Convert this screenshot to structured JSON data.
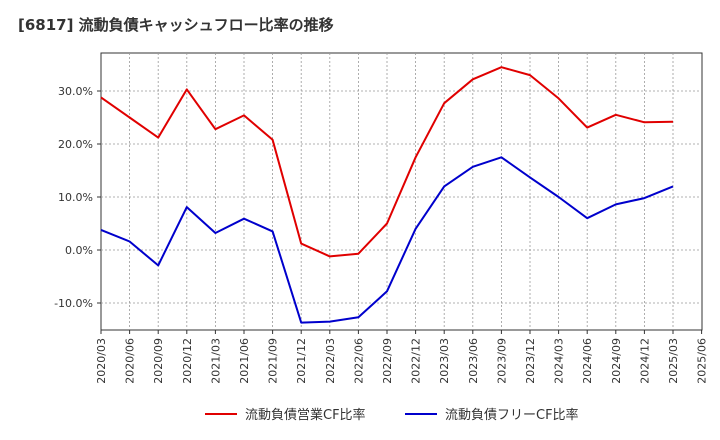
{
  "chart_data": {
    "type": "line",
    "title": "[6817]  流動負債キャッシュフロー比率の推移",
    "x": [
      "2020/03",
      "2020/06",
      "2020/09",
      "2020/12",
      "2021/03",
      "2021/06",
      "2021/09",
      "2021/12",
      "2022/03",
      "2022/06",
      "2022/09",
      "2022/12",
      "2023/03",
      "2023/06",
      "2023/09",
      "2023/12",
      "2024/03",
      "2024/06",
      "2024/09",
      "2024/12",
      "2025/03",
      "2025/06"
    ],
    "series": [
      {
        "name": "流動負債営業CF比率",
        "color": "#e00000",
        "values": [
          28.8,
          25.0,
          21.2,
          30.3,
          22.8,
          25.4,
          20.8,
          1.2,
          -1.2,
          -0.7,
          5.0,
          17.5,
          27.7,
          32.2,
          34.5,
          33.0,
          28.6,
          23.1,
          25.5,
          24.1,
          24.2,
          null
        ]
      },
      {
        "name": "流動負債フリーCF比率",
        "color": "#0000cc",
        "values": [
          3.8,
          1.6,
          -2.9,
          8.1,
          3.2,
          5.9,
          3.5,
          -13.7,
          -13.5,
          -12.7,
          -7.8,
          4.0,
          12.0,
          15.7,
          17.5,
          13.7,
          10.0,
          6.0,
          8.6,
          9.8,
          12.0,
          null
        ]
      }
    ],
    "yticks": [
      30,
      20,
      10,
      0,
      -10
    ],
    "ytick_labels": [
      "30.0%",
      "20.0%",
      "10.0%",
      "0.0%",
      "-10.0%"
    ],
    "ylim": [
      -15,
      37
    ],
    "grid": true,
    "legend": "bottom"
  }
}
